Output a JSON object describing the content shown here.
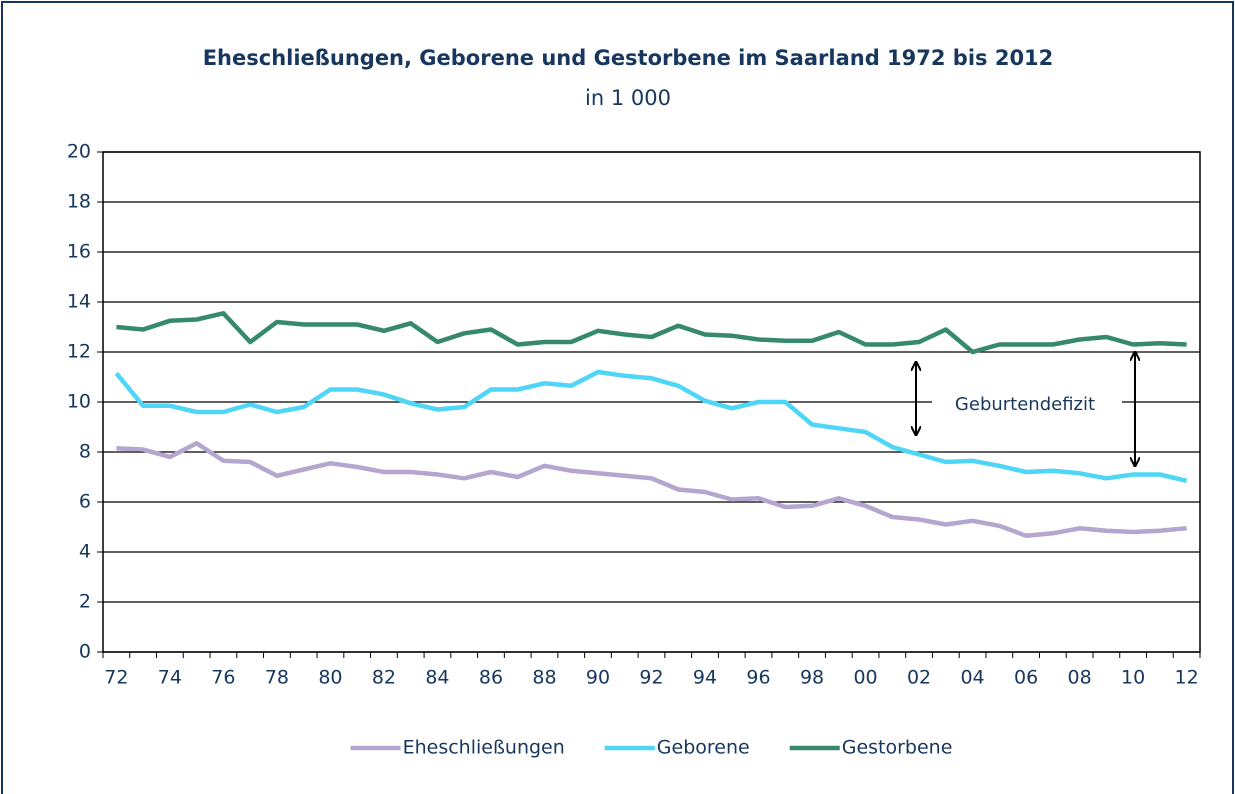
{
  "chart_data": {
    "type": "line",
    "title": "Eheschließungen, Geborene und Gestorbene im Saarland 1972 bis 2012",
    "subtitle": "in 1 000",
    "annotation": "Geburtendefizit",
    "categories": [
      "72",
      null,
      "74",
      null,
      "76",
      null,
      "78",
      null,
      "80",
      null,
      "82",
      null,
      "84",
      null,
      "86",
      null,
      "88",
      null,
      "90",
      null,
      "92",
      null,
      "94",
      null,
      "96",
      null,
      "98",
      null,
      "00",
      null,
      "02",
      null,
      "04",
      null,
      "06",
      null,
      "08",
      null,
      "10",
      null,
      "12"
    ],
    "series": [
      {
        "name": "Eheschließungen",
        "color": "#b3a6cf",
        "values": [
          8.15,
          8.1,
          7.8,
          8.35,
          7.65,
          7.6,
          7.05,
          7.3,
          7.55,
          7.4,
          7.2,
          7.2,
          7.1,
          6.95,
          7.2,
          7.0,
          7.45,
          7.25,
          7.15,
          7.05,
          6.95,
          6.5,
          6.4,
          6.1,
          6.15,
          5.8,
          5.85,
          6.15,
          5.85,
          5.4,
          5.3,
          5.1,
          5.25,
          5.05,
          4.65,
          4.75,
          4.95,
          4.85,
          4.8,
          4.85,
          4.95
        ]
      },
      {
        "name": "Geborene",
        "color": "#4fd6f7",
        "values": [
          11.15,
          9.85,
          9.85,
          9.6,
          9.6,
          9.9,
          9.6,
          9.8,
          10.5,
          10.5,
          10.3,
          9.95,
          9.7,
          9.8,
          10.5,
          10.5,
          10.75,
          10.65,
          11.2,
          11.05,
          10.95,
          10.65,
          10.05,
          9.75,
          10.0,
          10.0,
          9.1,
          8.95,
          8.8,
          8.2,
          7.9,
          7.6,
          7.65,
          7.45,
          7.2,
          7.25,
          7.15,
          6.95,
          7.1,
          7.1,
          6.85
        ]
      },
      {
        "name": "Gestorbene",
        "color": "#36896d",
        "values": [
          13.0,
          12.9,
          13.25,
          13.3,
          13.55,
          12.4,
          13.2,
          13.1,
          13.1,
          13.1,
          12.85,
          13.15,
          12.4,
          12.75,
          12.9,
          12.3,
          12.4,
          12.4,
          12.85,
          12.7,
          12.6,
          13.05,
          12.7,
          12.65,
          12.5,
          12.45,
          12.45,
          12.8,
          12.3,
          12.3,
          12.4,
          12.9,
          12.0,
          12.3,
          12.3,
          12.3,
          12.5,
          12.6,
          12.3,
          12.35,
          12.3
        ]
      }
    ],
    "ylim": [
      0,
      20
    ],
    "yticks": [
      0,
      2,
      4,
      6,
      8,
      10,
      12,
      14,
      16,
      18,
      20
    ],
    "grid": true,
    "legend": "bottom"
  }
}
